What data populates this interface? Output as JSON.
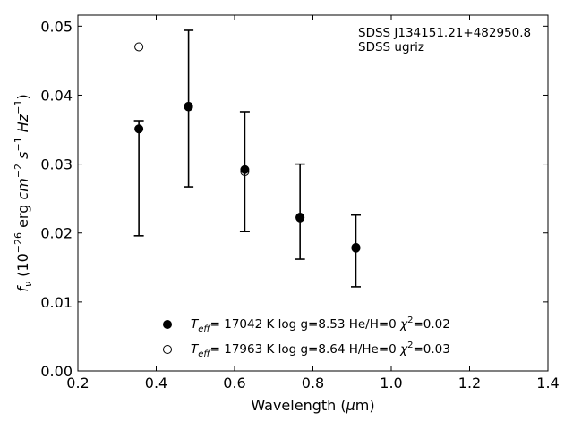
{
  "chart_data": {
    "type": "scatter",
    "annotation_lines": [
      "SDSS J134151.21+482950.8",
      "SDSS ugriz"
    ],
    "xlabel": "Wavelength (μm)",
    "ylabel": "f_ν (10^-26 erg cm^-2 s^-1 Hz^-1)",
    "xlim": [
      0.2,
      1.4
    ],
    "ylim": [
      0.0,
      0.0516
    ],
    "xticks": [
      0.2,
      0.4,
      0.6,
      0.8,
      1.0,
      1.2,
      1.4
    ],
    "xtick_labels": [
      "0.2",
      "0.4",
      "0.6",
      "0.8",
      "1.0",
      "1.2",
      "1.4"
    ],
    "yticks": [
      0.0,
      0.01,
      0.02,
      0.03,
      0.04,
      0.05
    ],
    "ytick_labels": [
      "0.00",
      "0.01",
      "0.02",
      "0.03",
      "0.04",
      "0.05"
    ],
    "grid": false,
    "legend_position": "lower-center",
    "series": [
      {
        "marker": "filled-circle",
        "legend_label": "T_eff= 17042 K  log g=8.53  He/H=0  χ²=0.02",
        "x": [
          0.3557,
          0.4825,
          0.6261,
          0.7672,
          0.9097
        ],
        "y": [
          0.0351,
          0.0383,
          0.0292,
          0.0223,
          0.0179
        ]
      },
      {
        "marker": "open-circle",
        "legend_label": "T_eff= 17963 K  log g=8.64  H/He=0  χ²=0.03",
        "x": [
          0.3557,
          0.4825,
          0.6261,
          0.7672,
          0.9097
        ],
        "y": [
          0.047,
          0.0384,
          0.0289,
          0.0222,
          0.0178
        ]
      }
    ],
    "observed": {
      "x": [
        0.3557,
        0.4825,
        0.6261,
        0.7672,
        0.9097
      ],
      "y": [
        0.028,
        0.0381,
        0.0289,
        0.0231,
        0.0174
      ],
      "yerr_low": [
        0.0084,
        0.0114,
        0.0087,
        0.0069,
        0.0052
      ],
      "yerr_high": [
        0.0083,
        0.0113,
        0.0087,
        0.0069,
        0.0052
      ]
    }
  }
}
